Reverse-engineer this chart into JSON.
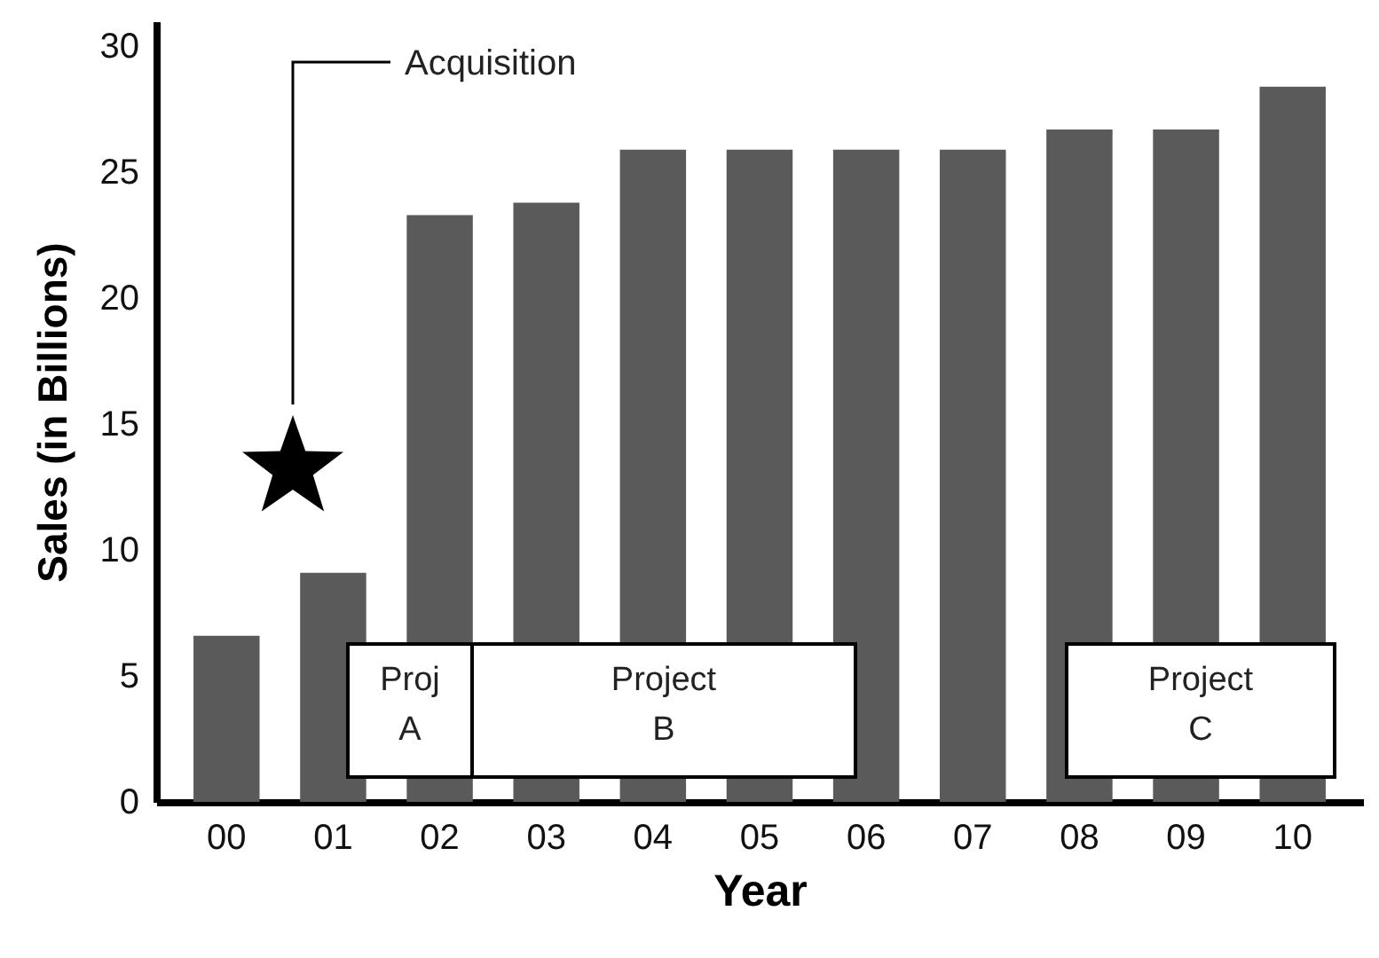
{
  "chart_data": {
    "type": "bar",
    "xlabel": "Year",
    "ylabel": "Sales (in Billions)",
    "categories": [
      "00",
      "01",
      "02",
      "03",
      "04",
      "05",
      "06",
      "07",
      "08",
      "09",
      "10"
    ],
    "values": [
      6.6,
      9.1,
      23.3,
      23.8,
      25.9,
      25.9,
      25.9,
      25.9,
      26.7,
      26.7,
      28.4
    ],
    "color": "#5a5a5a",
    "ylim": [
      0,
      31
    ],
    "yticks": [
      0,
      5,
      10,
      15,
      20,
      25,
      30
    ],
    "grid": false,
    "annotations": [
      "Acquisition",
      "Proj\nA",
      "Project\nB",
      "Project\nC"
    ]
  }
}
